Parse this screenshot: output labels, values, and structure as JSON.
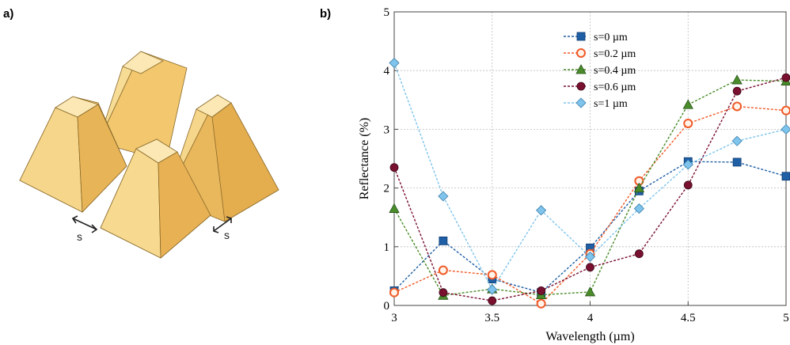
{
  "panel_a": {
    "label": "a)",
    "spacing_label_left": "s",
    "spacing_label_right": "s"
  },
  "panel_b": {
    "label": "b)"
  },
  "colors": {
    "pyramid_light": "#f7dc96",
    "pyramid_mid": "#f0c36a",
    "pyramid_dark": "#e2a947",
    "pyramid_edge": "#8a6a2a"
  },
  "chart_data": {
    "type": "line",
    "title": "",
    "xlabel": "Wavelength (µm)",
    "ylabel": "Reflectance (%)",
    "xlim": [
      3,
      5
    ],
    "ylim": [
      0,
      5
    ],
    "xticks": [
      3,
      3.5,
      4,
      4.5,
      5
    ],
    "xtick_labels": [
      "3",
      "3.5",
      "4",
      "4.5",
      "5"
    ],
    "yticks": [
      0,
      1,
      2,
      3,
      4,
      5
    ],
    "ytick_labels": [
      "0",
      "1",
      "2",
      "3",
      "4",
      "5"
    ],
    "grid": true,
    "legend_position": "top-center",
    "x": [
      3,
      3.25,
      3.5,
      3.75,
      4,
      4.25,
      4.5,
      4.75,
      5
    ],
    "series": [
      {
        "name": "s=0 µm",
        "color": "#1f5fa6",
        "marker": "square",
        "values": [
          0.25,
          1.1,
          0.45,
          0.22,
          0.98,
          1.95,
          2.45,
          2.44,
          2.2
        ]
      },
      {
        "name": "s=0.2 µm",
        "color": "#f05a28",
        "marker": "circle-open",
        "values": [
          0.22,
          0.6,
          0.52,
          0.03,
          0.88,
          2.12,
          3.1,
          3.39,
          3.32
        ]
      },
      {
        "name": "s=0.4 µm",
        "color": "#4a8c2a",
        "marker": "triangle",
        "values": [
          1.65,
          0.17,
          0.28,
          0.18,
          0.23,
          2.0,
          3.42,
          3.84,
          3.82
        ]
      },
      {
        "name": "s=0.6 µm",
        "color": "#7a1030",
        "marker": "circle",
        "values": [
          2.35,
          0.22,
          0.08,
          0.25,
          0.65,
          0.88,
          2.05,
          3.65,
          3.88
        ]
      },
      {
        "name": "s=1 µm",
        "color": "#7ec4ec",
        "marker": "diamond",
        "values": [
          4.13,
          1.86,
          0.27,
          1.62,
          0.83,
          1.65,
          2.4,
          2.8,
          3.0
        ]
      }
    ]
  }
}
